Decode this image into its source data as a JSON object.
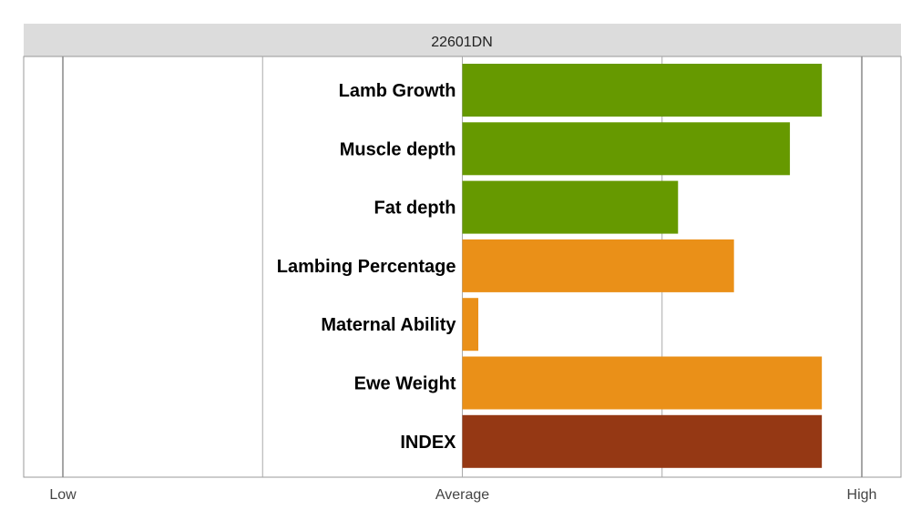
{
  "chart_data": {
    "type": "bar",
    "orientation": "horizontal",
    "title": "22601DN",
    "categories": [
      "Lamb Growth",
      "Muscle depth",
      "Fat depth",
      "Lambing Percentage",
      "Maternal Ability",
      "Ewe Weight",
      "INDEX"
    ],
    "values": [
      0.9,
      0.82,
      0.54,
      0.68,
      0.04,
      0.9,
      0.9
    ],
    "colors": [
      "#669900",
      "#669900",
      "#669900",
      "#EA9018",
      "#EA9018",
      "#EA9018",
      "#953814"
    ],
    "xlim": [
      -1,
      1
    ],
    "x_ticks": [
      {
        "value": -1,
        "label": "Low"
      },
      {
        "value": 0,
        "label": "Average"
      },
      {
        "value": 1,
        "label": "High"
      }
    ],
    "gridlines": [
      -1,
      -0.5,
      0,
      0.5,
      1
    ],
    "grid": true,
    "legend": "none"
  },
  "colors": {
    "header_background": "#DCDCDC",
    "gridline": "#AAAAAA",
    "border": "#999999"
  }
}
